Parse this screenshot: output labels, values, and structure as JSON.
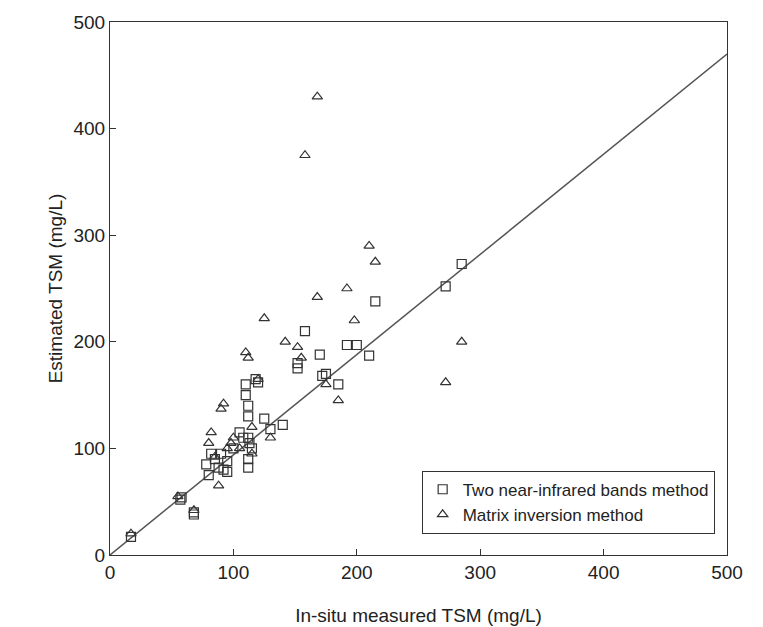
{
  "chart_data": {
    "type": "scatter",
    "x_label": "In-situ measured TSM (mg/L)",
    "y_label": "Estimated TSM (mg/L)",
    "xlim": [
      0,
      500
    ],
    "ylim": [
      0,
      500
    ],
    "xticks": [
      0,
      100,
      200,
      300,
      400,
      500
    ],
    "yticks": [
      0,
      100,
      200,
      300,
      400,
      500
    ],
    "grid": false,
    "legend": "lower right",
    "series": [
      {
        "type": "line",
        "color": "#555555",
        "line_style": "solid",
        "x": [
          0,
          500
        ],
        "values": [
          0,
          470
        ]
      },
      {
        "name": "Two near-infrared bands method",
        "type": "scatter",
        "marker": "square-open",
        "color": "#333333",
        "x": [
          17,
          57,
          58,
          68,
          68,
          78,
          80,
          82,
          85,
          88,
          90,
          92,
          95,
          95,
          100,
          105,
          108,
          110,
          110,
          112,
          112,
          112,
          113,
          115,
          118,
          120,
          125,
          130,
          140,
          152,
          152,
          158,
          170,
          172,
          175,
          185,
          192,
          200,
          210,
          215,
          272,
          285,
          112,
          112
        ],
        "values": [
          17,
          52,
          54,
          40,
          38,
          85,
          75,
          95,
          90,
          82,
          95,
          80,
          78,
          88,
          100,
          115,
          110,
          160,
          150,
          140,
          130,
          110,
          105,
          100,
          165,
          162,
          128,
          118,
          122,
          175,
          180,
          210,
          188,
          168,
          170,
          160,
          197,
          197,
          187,
          238,
          252,
          273,
          90,
          82
        ]
      },
      {
        "name": "Matrix inversion method",
        "type": "scatter",
        "marker": "triangle-up-open",
        "color": "#333333",
        "x": [
          17,
          55,
          68,
          80,
          82,
          85,
          88,
          90,
          92,
          95,
          98,
          105,
          110,
          112,
          115,
          115,
          120,
          125,
          130,
          142,
          152,
          155,
          158,
          168,
          168,
          175,
          185,
          192,
          198,
          210,
          215,
          272,
          285,
          100
        ],
        "values": [
          20,
          55,
          42,
          105,
          115,
          92,
          65,
          137,
          142,
          100,
          105,
          100,
          190,
          185,
          120,
          95,
          165,
          222,
          110,
          200,
          195,
          185,
          375,
          430,
          242,
          160,
          145,
          250,
          220,
          290,
          275,
          162,
          200,
          110
        ]
      }
    ]
  }
}
